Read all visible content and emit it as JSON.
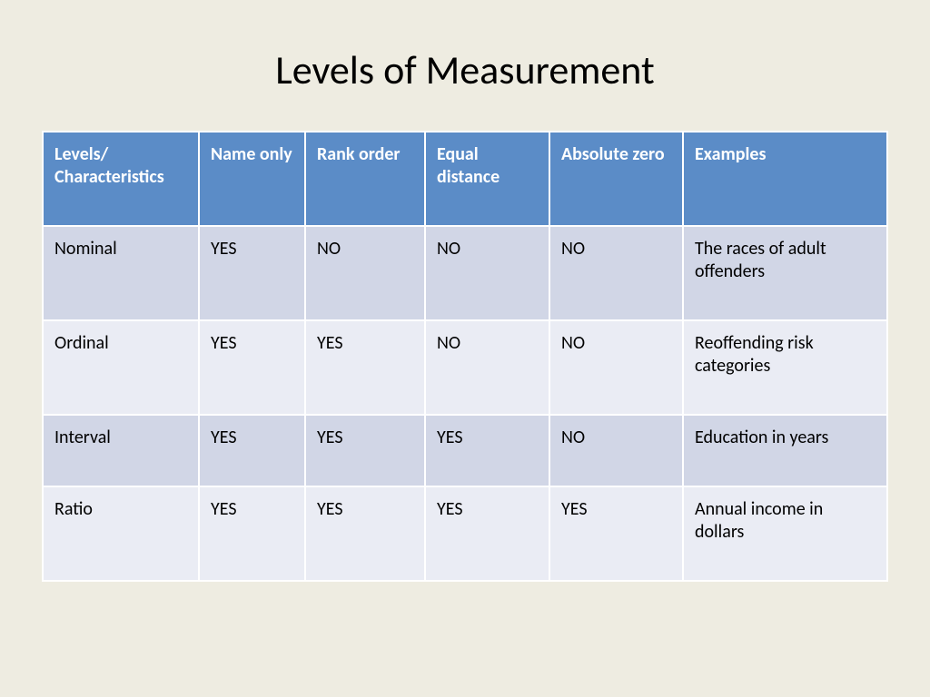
{
  "title": "Levels of Measurement",
  "header_bg": "#5b8cc7",
  "header_color": "#ffffff",
  "row_odd_bg": "#d1d6e6",
  "row_even_bg": "#eaecf4",
  "slide_bg": "#eeece1",
  "title_fontsize": 44,
  "cell_fontsize": 20,
  "columns": [
    {
      "key": "level",
      "label": "Levels/ Characteristics"
    },
    {
      "key": "name_only",
      "label": "Name only"
    },
    {
      "key": "rank_order",
      "label": "Rank order"
    },
    {
      "key": "equal_distance",
      "label": "Equal distance"
    },
    {
      "key": "absolute_zero",
      "label": "Absolute zero"
    },
    {
      "key": "examples",
      "label": "Examples"
    }
  ],
  "rows": [
    {
      "level": "Nominal",
      "name_only": "YES",
      "rank_order": "NO",
      "equal_distance": "NO",
      "absolute_zero": "NO",
      "examples": "The races of adult offenders"
    },
    {
      "level": "Ordinal",
      "name_only": "YES",
      "rank_order": "YES",
      "equal_distance": "NO",
      "absolute_zero": "NO",
      "examples": "Reoffending risk categories"
    },
    {
      "level": "Interval",
      "name_only": "YES",
      "rank_order": "YES",
      "equal_distance": "YES",
      "absolute_zero": "NO",
      "examples": "Education in years"
    },
    {
      "level": "Ratio",
      "name_only": "YES",
      "rank_order": "YES",
      "equal_distance": "YES",
      "absolute_zero": "YES",
      "examples": "Annual income in dollars"
    }
  ]
}
